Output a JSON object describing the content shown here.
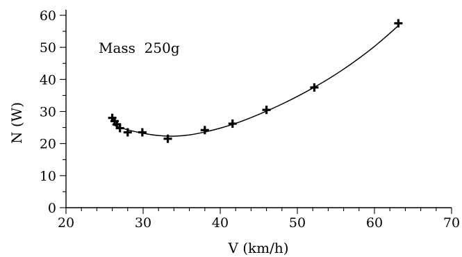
{
  "chart_data": {
    "type": "scatter",
    "title": "",
    "annotation": "Mass  250g",
    "xlabel": "V (km/h)",
    "ylabel": "N (W)",
    "xlim": [
      20,
      70
    ],
    "ylim": [
      0,
      60
    ],
    "x_ticks": [
      20,
      30,
      40,
      50,
      60,
      70
    ],
    "y_ticks": [
      0,
      10,
      20,
      30,
      40,
      50,
      60
    ],
    "x_minor_step": 2,
    "y_minor_step": 5,
    "grid": false,
    "series": [
      {
        "marker": "plus",
        "points": [
          {
            "x": 26.0,
            "y": 28.0
          },
          {
            "x": 26.3,
            "y": 27.0
          },
          {
            "x": 26.6,
            "y": 26.0
          },
          {
            "x": 27.0,
            "y": 24.8
          },
          {
            "x": 28.0,
            "y": 23.5
          },
          {
            "x": 29.9,
            "y": 23.5
          },
          {
            "x": 33.2,
            "y": 21.5
          },
          {
            "x": 38.0,
            "y": 24.2
          },
          {
            "x": 41.6,
            "y": 26.2
          },
          {
            "x": 46.0,
            "y": 30.5
          },
          {
            "x": 52.2,
            "y": 37.5
          },
          {
            "x": 63.1,
            "y": 57.5
          }
        ]
      }
    ],
    "fit_curve": [
      {
        "x": 26.0,
        "y": 25.9
      },
      {
        "x": 28.0,
        "y": 24.3
      },
      {
        "x": 30.0,
        "y": 23.2
      },
      {
        "x": 32.0,
        "y": 22.5
      },
      {
        "x": 34.0,
        "y": 22.3
      },
      {
        "x": 36.0,
        "y": 22.7
      },
      {
        "x": 38.0,
        "y": 23.6
      },
      {
        "x": 40.0,
        "y": 24.8
      },
      {
        "x": 42.0,
        "y": 26.3
      },
      {
        "x": 44.0,
        "y": 28.1
      },
      {
        "x": 46.0,
        "y": 30.1
      },
      {
        "x": 48.0,
        "y": 32.3
      },
      {
        "x": 50.0,
        "y": 34.7
      },
      {
        "x": 52.0,
        "y": 37.3
      },
      {
        "x": 54.0,
        "y": 40.1
      },
      {
        "x": 56.0,
        "y": 43.2
      },
      {
        "x": 58.0,
        "y": 46.6
      },
      {
        "x": 60.0,
        "y": 50.3
      },
      {
        "x": 62.0,
        "y": 54.4
      },
      {
        "x": 63.2,
        "y": 57.0
      }
    ]
  }
}
